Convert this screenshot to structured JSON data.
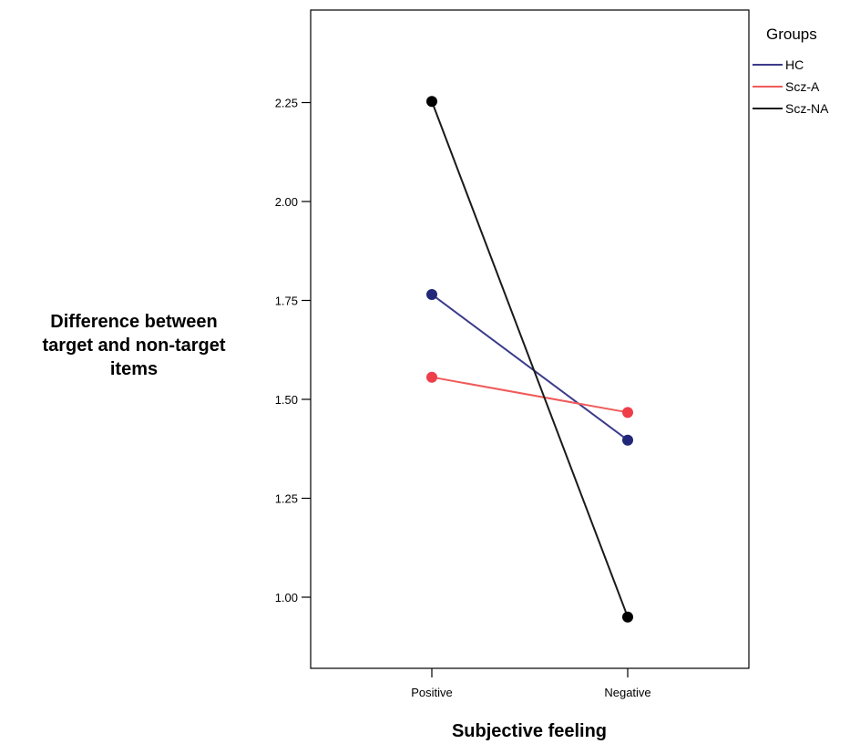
{
  "chart_data": {
    "type": "line",
    "categories": [
      "Positive",
      "Negative"
    ],
    "series": [
      {
        "name": "HC",
        "values": [
          1.765,
          1.397
        ],
        "color": "#3b3b8a",
        "marker_color": "#22277a"
      },
      {
        "name": "Scz-A",
        "values": [
          1.556,
          1.467
        ],
        "color": "#f05a5a",
        "marker_color": "#ee3e4a"
      },
      {
        "name": "Scz-NA",
        "values": [
          2.253,
          0.95
        ],
        "color": "#1a1a1a",
        "marker_color": "#000000"
      }
    ],
    "xlabel": "Subjective feeling",
    "ylabel_lines": [
      "Difference between",
      "target and non-target",
      "items"
    ],
    "ylim": [
      0.7,
      2.5
    ],
    "yticks": [
      1.0,
      1.25,
      1.5,
      1.75,
      2.0,
      2.25
    ],
    "ytick_labels": [
      "1.00",
      "1.25",
      "1.50",
      "1.75",
      "2.00",
      "2.25"
    ],
    "legend": {
      "title": "Groups",
      "position": "top-right",
      "entries": [
        "HC",
        "Scz-A",
        "Scz-NA"
      ]
    },
    "grid": false
  }
}
